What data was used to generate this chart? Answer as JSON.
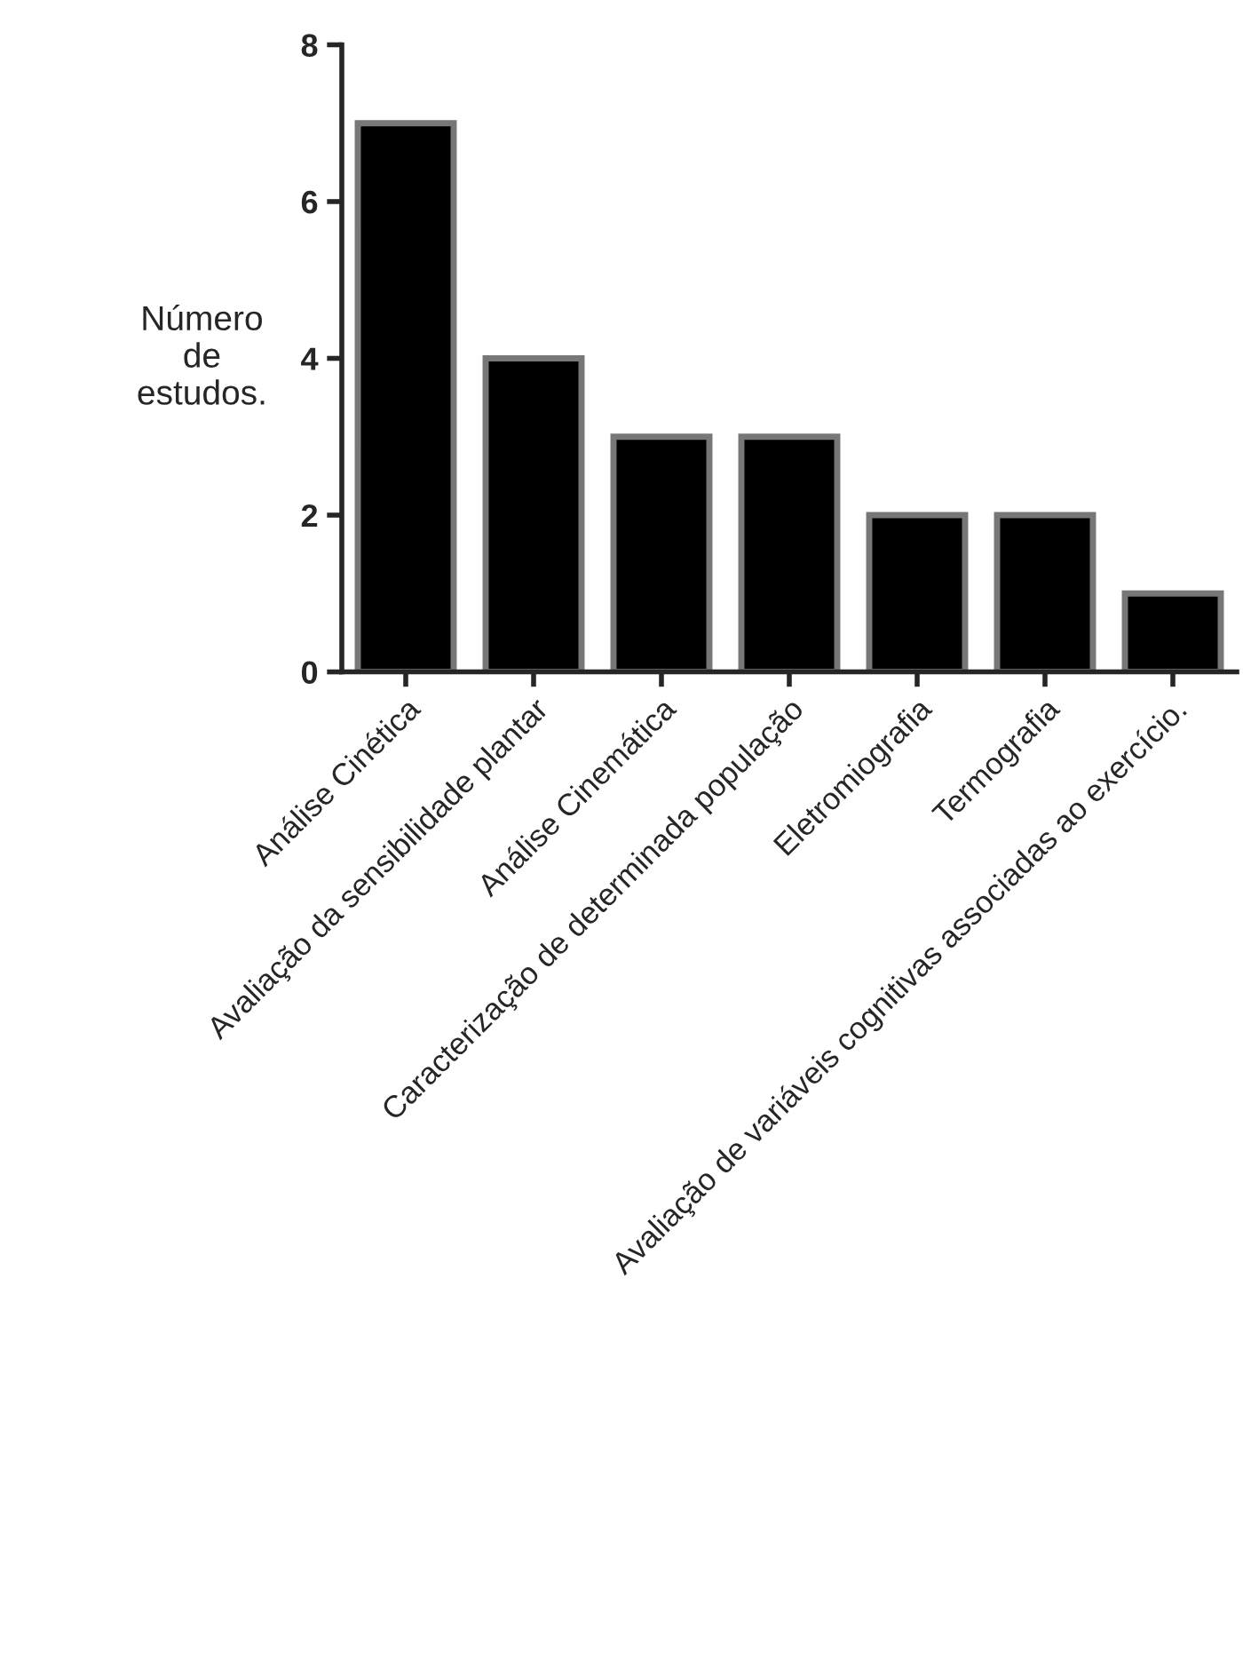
{
  "chart_data": {
    "type": "bar",
    "ylabel": "Número\nde\nestudos.",
    "categories": [
      "Análise Cinética",
      "Avaliação da sensibilidade plantar",
      "Análise Cinemática",
      "Caracterização de determinada população",
      "Eletromiografia",
      "Termografia",
      "Avaliação de variáveis cognitivas associadas ao exercício."
    ],
    "values": [
      7,
      4,
      3,
      3,
      2,
      2,
      1
    ],
    "color": "#000000",
    "ylim": [
      0,
      8
    ],
    "yticks": [
      0,
      2,
      4,
      6,
      8
    ],
    "grid": false
  }
}
